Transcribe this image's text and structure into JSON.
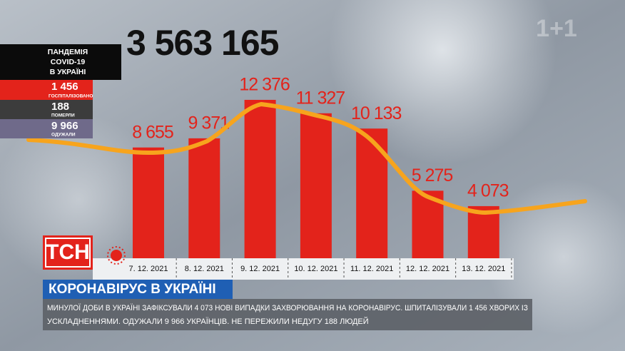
{
  "chart_data": {
    "type": "bar",
    "categories": [
      "7. 12. 2021",
      "8. 12. 2021",
      "9. 12. 2021",
      "10. 12. 2021",
      "11. 12. 2021",
      "12. 12. 2021",
      "13. 12. 2021"
    ],
    "values": [
      8655,
      9371,
      12376,
      11327,
      10133,
      5275,
      4073
    ],
    "value_labels": [
      "8 655",
      "9 371",
      "12 376",
      "11 327",
      "10 133",
      "5 275",
      "4 073"
    ],
    "color": "#e3231b"
  },
  "total": "3 563 165",
  "sidebar": {
    "header": [
      "ПАНДЕМІЯ",
      "COVID-19",
      "В УКРАЇНІ"
    ],
    "stats": [
      {
        "value": "1 456",
        "label": "ГОСПІТАЛІЗОВАНО"
      },
      {
        "value": "188",
        "label": "ПОМЕРЛИ"
      },
      {
        "value": "9 966",
        "label": "ОДУЖАЛИ"
      }
    ]
  },
  "logo": "ТСН",
  "watermark": "1+1",
  "headline": "КОРОНАВІРУС В УКРАЇНІ",
  "ticker": [
    "МИНУЛОЇ ДОБИ В УКРАЇНІ ЗАФІКСУВАЛИ 4 073 НОВІ ВИПАДКИ ЗАХВОРЮВАННЯ НА КОРОНАВІРУС. ШПИТАЛІЗУВАЛИ 1 456 ХВОРИХ ІЗ",
    "УСКЛАДНЕННЯМИ. ОДУЖАЛИ 9 966 УКРАЇНЦІВ. НЕ ПЕРЕЖИЛИ НЕДУГУ 188 ЛЮДЕЙ"
  ]
}
